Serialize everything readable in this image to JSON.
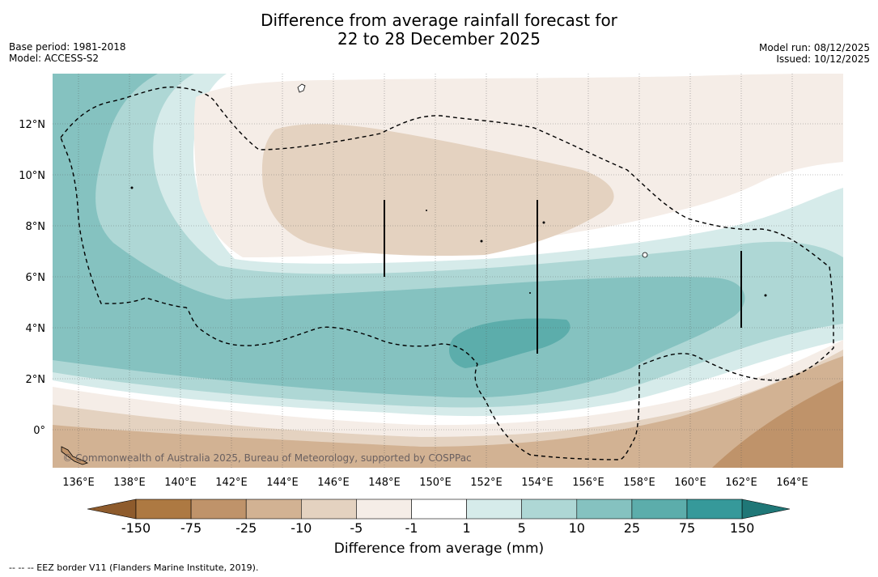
{
  "title": {
    "line1": "Difference from average rainfall forecast for",
    "line2": "22 to 28 December 2025"
  },
  "meta_left": {
    "base_period": "Base period: 1981-2018",
    "model": "Model: ACCESS-S2"
  },
  "meta_right": {
    "model_run": "Model run: 08/12/2025",
    "issued": "Issued: 10/12/2025"
  },
  "map": {
    "x_ticks": [
      "136°E",
      "138°E",
      "140°E",
      "142°E",
      "144°E",
      "146°E",
      "148°E",
      "150°E",
      "152°E",
      "154°E",
      "156°E",
      "158°E",
      "160°E",
      "162°E",
      "164°E"
    ],
    "y_ticks": [
      "12°N",
      "10°N",
      "8°N",
      "6°N",
      "4°N",
      "2°N",
      "0°"
    ],
    "copyright": "© Commonwealth of Australia 2025, Bureau of Meteorology, supported by COSPPac",
    "lon_range": [
      135,
      166
    ],
    "lat_range": [
      -1.5,
      14
    ]
  },
  "colorbar": {
    "title": "Difference from average (mm)",
    "labels": [
      "-150",
      "-75",
      "-25",
      "-10",
      "-5",
      "-1",
      "1",
      "5",
      "10",
      "25",
      "75",
      "150"
    ],
    "colors": [
      "#8e5b2c",
      "#ad7942",
      "#bf936a",
      "#d2b293",
      "#e4d2c0",
      "#f5ede7",
      "#ffffff",
      "#d6ebea",
      "#aed7d5",
      "#85c2c0",
      "#5cadab",
      "#36999a",
      "#1f7777"
    ]
  },
  "footnote": "--  --  -- EEZ border V11 (Flanders Marine Institute, 2019)."
}
